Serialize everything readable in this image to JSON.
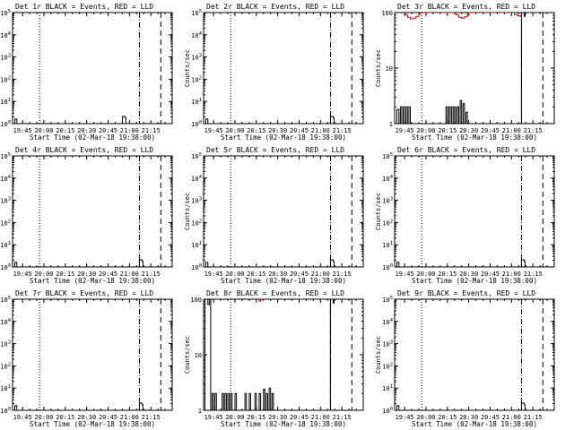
{
  "chart_data": [
    {
      "type": "line",
      "title": "Det 1r BLACK = Events, RED = LLD",
      "xlabel": "Start Time (02-Mar-18 19:38:00)",
      "ylabel": "Counts/sec",
      "yscale": "log",
      "ylim": [
        1,
        100000
      ],
      "ytick_labels": [
        "10^0",
        "10^1",
        "10^2",
        "10^3",
        "10^4",
        "10^5"
      ],
      "x_tick_labels": [
        "19:45",
        "20:00",
        "20:15",
        "20:30",
        "20:45",
        "21:00",
        "21:15"
      ],
      "x_ticks_min": [
        465,
        480,
        495,
        510,
        525,
        540,
        555
      ],
      "xlim_min": [
        458,
        570
      ],
      "vlines_min": [
        {
          "x": 477,
          "style": "dotted"
        },
        {
          "x": 547,
          "style": "dashdot"
        },
        {
          "x": 562,
          "style": "dashed"
        }
      ],
      "series": [
        {
          "color": "#000000",
          "points": [
            [
              458,
              1
            ],
            [
              459.5,
              1.6
            ],
            [
              461,
              1
            ],
            [
              534.5,
              1
            ],
            [
              535,
              2.1
            ],
            [
              537,
              1.8
            ],
            [
              537.5,
              1
            ]
          ]
        }
      ]
    },
    {
      "type": "line",
      "title": "Det 2r BLACK = Events, RED = LLD",
      "xlabel": "Start Time (02-Mar-18 19:38:00)",
      "ylabel": "Counts/sec",
      "yscale": "log",
      "ylim": [
        1,
        100000
      ],
      "ytick_labels": [
        "10^0",
        "10^1",
        "10^2",
        "10^3",
        "10^4",
        "10^5"
      ],
      "x_tick_labels": [
        "19:45",
        "20:00",
        "20:15",
        "20:30",
        "20:45",
        "21:00",
        "21:15"
      ],
      "x_ticks_min": [
        465,
        480,
        495,
        510,
        525,
        540,
        555
      ],
      "xlim_min": [
        458,
        570
      ],
      "vlines_min": [
        {
          "x": 477,
          "style": "dotted"
        },
        {
          "x": 547,
          "style": "dashdot"
        },
        {
          "x": 562,
          "style": "dashed"
        }
      ],
      "series": [
        {
          "color": "#000000",
          "points": [
            [
              458,
              1
            ],
            [
              459.5,
              1.6
            ],
            [
              461,
              1
            ],
            [
              546.5,
              1
            ],
            [
              547,
              2.1
            ],
            [
              549,
              1.8
            ],
            [
              549.5,
              1
            ]
          ]
        }
      ]
    },
    {
      "type": "line",
      "title": "Det 3r BLACK = Events, RED = LLD",
      "xlabel": "Start Time (02-Mar-18 19:38:00)",
      "ylabel": "Counts/sec",
      "yscale": "log",
      "ylim": [
        1,
        100
      ],
      "ytick_labels": [
        "1",
        "10",
        "100"
      ],
      "x_tick_labels": [
        "19:45",
        "20:00",
        "20:15",
        "20:30",
        "20:45",
        "21:00",
        "21:15"
      ],
      "x_ticks_min": [
        465,
        480,
        495,
        510,
        525,
        540,
        555
      ],
      "xlim_min": [
        458,
        570
      ],
      "vlines_min": [
        {
          "x": 477,
          "style": "dotted"
        },
        {
          "x": 547,
          "style": "dashdot"
        },
        {
          "x": 562,
          "style": "dashed"
        }
      ],
      "series": [
        {
          "color": "#000000",
          "points": [
            [
              458,
              1
            ],
            [
              459.5,
              1.8
            ],
            [
              461,
              1
            ],
            [
              462,
              2
            ],
            [
              463,
              1
            ],
            [
              464,
              2
            ],
            [
              465,
              1
            ],
            [
              466,
              2
            ],
            [
              467,
              1
            ],
            [
              468,
              2
            ],
            [
              469,
              1
            ],
            [
              493,
              1
            ],
            [
              494,
              2
            ],
            [
              495,
              1
            ],
            [
              496,
              2
            ],
            [
              497,
              1
            ],
            [
              498,
              2
            ],
            [
              499,
              1
            ],
            [
              500,
              2
            ],
            [
              501,
              1
            ],
            [
              502,
              2
            ],
            [
              503,
              1
            ],
            [
              504,
              2.6
            ],
            [
              505,
              1
            ],
            [
              506,
              2.3
            ],
            [
              507,
              1
            ],
            [
              508,
              1.6
            ],
            [
              509,
              1
            ],
            [
              546.5,
              1
            ],
            [
              547,
              100
            ],
            [
              549,
              85
            ],
            [
              549.5,
              100
            ]
          ]
        },
        {
          "color": "#dd0000",
          "points": [
            [
              465,
              100
            ],
            [
              466,
              90
            ],
            [
              467,
              82
            ],
            [
              469,
              77
            ],
            [
              471,
              79
            ],
            [
              473,
              85
            ],
            [
              475,
              94
            ],
            [
              476,
              100
            ],
            [
              500,
              100
            ],
            [
              501,
              90
            ],
            [
              503,
              82
            ],
            [
              505,
              79
            ],
            [
              507,
              84
            ],
            [
              509,
              95
            ],
            [
              510,
              100
            ],
            [
              540,
              100
            ],
            [
              542,
              92
            ],
            [
              544,
              88
            ],
            [
              546,
              85
            ],
            [
              547,
              80
            ]
          ]
        }
      ]
    },
    {
      "type": "line",
      "title": "Det 4r BLACK = Events, RED = LLD",
      "xlabel": "Start Time (02-Mar-18 19:38:00)",
      "ylabel": "Counts/sec",
      "yscale": "log",
      "ylim": [
        1,
        100000
      ],
      "ytick_labels": [
        "10^0",
        "10^1",
        "10^2",
        "10^3",
        "10^4",
        "10^5"
      ],
      "x_tick_labels": [
        "19:45",
        "20:00",
        "20:15",
        "20:30",
        "20:45",
        "21:00",
        "21:15"
      ],
      "x_ticks_min": [
        465,
        480,
        495,
        510,
        525,
        540,
        555
      ],
      "xlim_min": [
        458,
        570
      ],
      "vlines_min": [
        {
          "x": 477,
          "style": "dotted"
        },
        {
          "x": 547,
          "style": "dashdot"
        },
        {
          "x": 562,
          "style": "dashed"
        }
      ],
      "series": [
        {
          "color": "#000000",
          "points": [
            [
              458,
              1
            ],
            [
              459.5,
              1.6
            ],
            [
              461,
              1
            ],
            [
              546.5,
              1
            ],
            [
              547,
              2.1
            ],
            [
              549,
              1.8
            ],
            [
              549.5,
              1
            ]
          ]
        }
      ]
    },
    {
      "type": "line",
      "title": "Det 5r BLACK = Events, RED = LLD",
      "xlabel": "Start Time (02-Mar-18 19:38:00)",
      "ylabel": "Counts/sec",
      "yscale": "log",
      "ylim": [
        1,
        100000
      ],
      "ytick_labels": [
        "10^0",
        "10^1",
        "10^2",
        "10^3",
        "10^4",
        "10^5"
      ],
      "x_tick_labels": [
        "19:45",
        "20:00",
        "20:15",
        "20:30",
        "20:45",
        "21:00",
        "21:15"
      ],
      "x_ticks_min": [
        465,
        480,
        495,
        510,
        525,
        540,
        555
      ],
      "xlim_min": [
        458,
        570
      ],
      "vlines_min": [
        {
          "x": 477,
          "style": "dotted"
        },
        {
          "x": 547,
          "style": "dashdot"
        },
        {
          "x": 562,
          "style": "dashed"
        }
      ],
      "series": [
        {
          "color": "#000000",
          "points": [
            [
              458,
              1
            ],
            [
              459.5,
              1.6
            ],
            [
              461,
              1
            ],
            [
              546.5,
              1
            ],
            [
              547,
              2.1
            ],
            [
              549,
              1.8
            ],
            [
              549.5,
              1
            ]
          ]
        }
      ]
    },
    {
      "type": "line",
      "title": "Det 6r BLACK = Events, RED = LLD",
      "xlabel": "Start Time (02-Mar-18 19:38:00)",
      "ylabel": "Counts/sec",
      "yscale": "log",
      "ylim": [
        1,
        100000
      ],
      "ytick_labels": [
        "10^0",
        "10^1",
        "10^2",
        "10^3",
        "10^4",
        "10^5"
      ],
      "x_tick_labels": [
        "19:45",
        "20:00",
        "20:15",
        "20:30",
        "20:45",
        "21:00",
        "21:15"
      ],
      "x_ticks_min": [
        465,
        480,
        495,
        510,
        525,
        540,
        555
      ],
      "xlim_min": [
        458,
        570
      ],
      "vlines_min": [
        {
          "x": 477,
          "style": "dotted"
        },
        {
          "x": 547,
          "style": "dashdot"
        },
        {
          "x": 562,
          "style": "dashed"
        }
      ],
      "series": [
        {
          "color": "#000000",
          "points": [
            [
              458,
              1
            ],
            [
              459.5,
              1.6
            ],
            [
              461,
              1
            ],
            [
              546.5,
              1
            ],
            [
              547,
              2.1
            ],
            [
              549,
              1.8
            ],
            [
              549.5,
              1
            ]
          ]
        }
      ]
    },
    {
      "type": "line",
      "title": "Det 7r BLACK = Events, RED = LLD",
      "xlabel": "Start Time (02-Mar-18 19:38:00)",
      "ylabel": "Counts/sec",
      "yscale": "log",
      "ylim": [
        1,
        100000
      ],
      "ytick_labels": [
        "10^0",
        "10^1",
        "10^2",
        "10^3",
        "10^4",
        "10^5"
      ],
      "x_tick_labels": [
        "19:45",
        "20:00",
        "20:15",
        "20:30",
        "20:45",
        "21:00",
        "21:15"
      ],
      "x_ticks_min": [
        465,
        480,
        495,
        510,
        525,
        540,
        555
      ],
      "xlim_min": [
        458,
        570
      ],
      "vlines_min": [
        {
          "x": 477,
          "style": "dotted"
        },
        {
          "x": 547,
          "style": "dashdot"
        },
        {
          "x": 562,
          "style": "dashed"
        }
      ],
      "series": [
        {
          "color": "#000000",
          "points": [
            [
              458,
              1
            ],
            [
              459.5,
              1.6
            ],
            [
              461,
              1
            ],
            [
              546.5,
              1
            ],
            [
              547,
              2.1
            ],
            [
              549,
              1.8
            ],
            [
              549.5,
              1
            ]
          ]
        }
      ]
    },
    {
      "type": "line",
      "title": "Det 8r BLACK = Events, RED = LLD",
      "xlabel": "Start Time (02-Mar-18 19:38:00)",
      "ylabel": "Counts/sec",
      "yscale": "log",
      "ylim": [
        1,
        100
      ],
      "ytick_labels": [
        "1",
        "10",
        "100"
      ],
      "x_tick_labels": [
        "19:45",
        "20:00",
        "20:15",
        "20:30",
        "20:45",
        "21:00",
        "21:15"
      ],
      "x_ticks_min": [
        465,
        480,
        495,
        510,
        525,
        540,
        555
      ],
      "xlim_min": [
        458,
        570
      ],
      "vlines_min": [
        {
          "x": 477,
          "style": "dotted"
        },
        {
          "x": 547,
          "style": "dashdot"
        },
        {
          "x": 562,
          "style": "dashed"
        }
      ],
      "series": [
        {
          "color": "#000000",
          "points": [
            [
              458,
              1
            ],
            [
              459,
              100
            ],
            [
              461,
              80
            ],
            [
              462,
              100
            ],
            [
              463,
              1
            ],
            [
              464,
              2
            ],
            [
              465,
              1
            ],
            [
              466,
              2
            ],
            [
              467,
              1
            ],
            [
              470,
              1
            ],
            [
              471,
              2
            ],
            [
              472,
              1
            ],
            [
              473,
              2
            ],
            [
              474,
              1
            ],
            [
              475,
              2
            ],
            [
              476,
              1
            ],
            [
              477,
              2
            ],
            [
              478,
              1
            ],
            [
              480,
              2
            ],
            [
              481,
              1
            ],
            [
              486,
              1
            ],
            [
              487,
              2
            ],
            [
              488,
              1
            ],
            [
              490,
              2
            ],
            [
              491,
              1
            ],
            [
              494,
              2
            ],
            [
              495,
              1
            ],
            [
              497,
              2
            ],
            [
              498,
              1
            ],
            [
              500,
              2.4
            ],
            [
              501,
              1
            ],
            [
              502,
              2
            ],
            [
              503,
              1
            ],
            [
              504,
              2.5
            ],
            [
              505,
              1
            ],
            [
              506,
              2
            ],
            [
              507,
              1
            ],
            [
              546.5,
              1
            ],
            [
              547,
              100
            ],
            [
              549,
              85
            ],
            [
              549.5,
              100
            ]
          ]
        },
        {
          "color": "#dd0000",
          "points": [
            [
              496,
              100
            ],
            [
              497,
              92
            ],
            [
              498,
              100
            ]
          ]
        }
      ]
    },
    {
      "type": "line",
      "title": "Det 9r BLACK = Events, RED = LLD",
      "xlabel": "Start Time (02-Mar-18 19:38:00)",
      "ylabel": "Counts/sec",
      "yscale": "log",
      "ylim": [
        1,
        100000
      ],
      "ytick_labels": [
        "10^0",
        "10^1",
        "10^2",
        "10^3",
        "10^4",
        "10^5"
      ],
      "x_tick_labels": [
        "19:45",
        "20:00",
        "20:15",
        "20:30",
        "20:45",
        "21:00",
        "21:15"
      ],
      "x_ticks_min": [
        465,
        480,
        495,
        510,
        525,
        540,
        555
      ],
      "xlim_min": [
        458,
        570
      ],
      "vlines_min": [
        {
          "x": 477,
          "style": "dotted"
        },
        {
          "x": 547,
          "style": "dashdot"
        },
        {
          "x": 562,
          "style": "dashed"
        }
      ],
      "series": [
        {
          "color": "#000000",
          "points": [
            [
              458,
              1
            ],
            [
              459.5,
              1.6
            ],
            [
              461,
              1
            ],
            [
              546.5,
              1
            ],
            [
              547,
              2.1
            ],
            [
              549,
              1.8
            ],
            [
              549.5,
              1
            ]
          ]
        }
      ]
    }
  ]
}
